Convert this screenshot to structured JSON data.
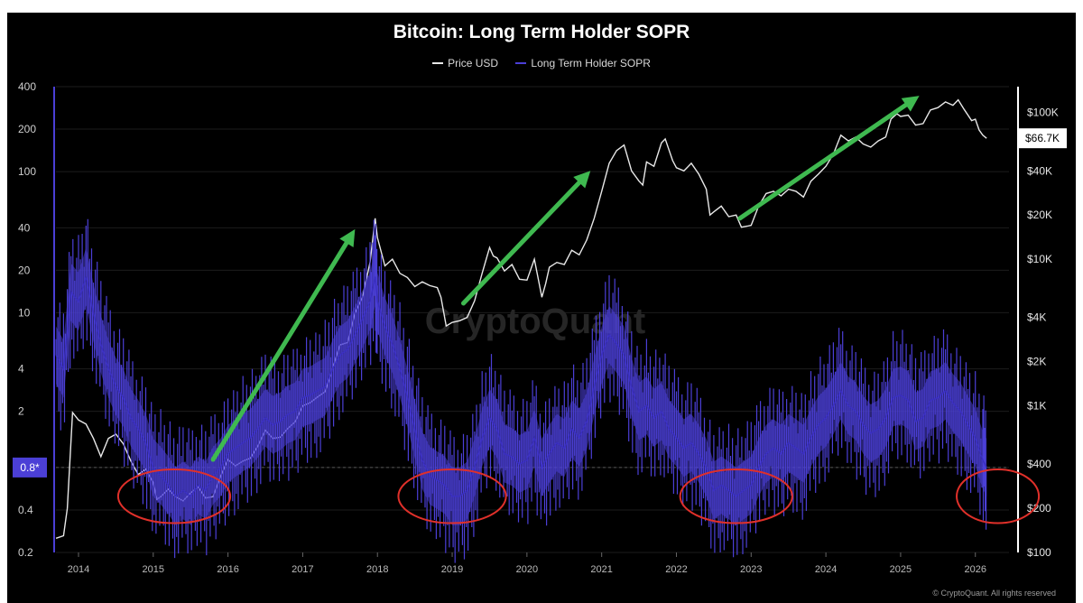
{
  "chart_data": {
    "type": "line",
    "title": "Bitcoin: Long Term Holder SOPR",
    "y_scale": "log",
    "left_axis_ticks": [
      "400",
      "200",
      "100",
      "40",
      "20",
      "10",
      "4",
      "2",
      "0.8*",
      "0.4",
      "0.2"
    ],
    "right_axis_ticks": [
      "$100K",
      "$40K",
      "$20K",
      "$10K",
      "$4K",
      "$2K",
      "$1K",
      "$400",
      "$200",
      "$100"
    ],
    "x_ticks": [
      "2014",
      "2015",
      "2016",
      "2017",
      "2018",
      "2019",
      "2020",
      "2021",
      "2022",
      "2023",
      "2024",
      "2025",
      "2026"
    ],
    "left_range": [
      0.2,
      400
    ],
    "right_range": [
      100,
      150000
    ],
    "current_price_label": "$66.7K",
    "current_sopr_label": "0.8*",
    "watermark": "CryptoQuant",
    "copyright": "© CryptoQuant. All rights reserved",
    "series": [
      {
        "name": "Price USD",
        "color": "#e8e8e8",
        "axis": "right",
        "points": [
          [
            2013.7,
            125
          ],
          [
            2013.8,
            130
          ],
          [
            2013.85,
            200
          ],
          [
            2013.92,
            900
          ],
          [
            213.96,
            1000
          ],
          [
            2014.0,
            800
          ],
          [
            2014.1,
            750
          ],
          [
            2014.2,
            600
          ],
          [
            2014.3,
            450
          ],
          [
            2014.4,
            600
          ],
          [
            2014.5,
            640
          ],
          [
            2014.6,
            550
          ],
          [
            2014.7,
            420
          ],
          [
            2014.8,
            340
          ],
          [
            2014.9,
            370
          ],
          [
            2015.0,
            300
          ],
          [
            2015.05,
            230
          ],
          [
            2015.1,
            240
          ],
          [
            2015.2,
            270
          ],
          [
            2015.3,
            240
          ],
          [
            2015.4,
            225
          ],
          [
            2015.5,
            255
          ],
          [
            2015.6,
            280
          ],
          [
            2015.7,
            235
          ],
          [
            2015.8,
            240
          ],
          [
            2015.9,
            330
          ],
          [
            2016.0,
            430
          ],
          [
            2016.1,
            390
          ],
          [
            2016.2,
            420
          ],
          [
            2016.3,
            440
          ],
          [
            2016.4,
            530
          ],
          [
            2016.5,
            680
          ],
          [
            2016.6,
            600
          ],
          [
            2016.7,
            610
          ],
          [
            2016.8,
            700
          ],
          [
            2016.9,
            780
          ],
          [
            2017.0,
            1000
          ],
          [
            2017.1,
            1050
          ],
          [
            2017.2,
            1150
          ],
          [
            2017.3,
            1250
          ],
          [
            2017.4,
            1800
          ],
          [
            2017.5,
            2600
          ],
          [
            2017.6,
            2700
          ],
          [
            2017.7,
            4300
          ],
          [
            2017.8,
            5500
          ],
          [
            2017.9,
            9500
          ],
          [
            2017.97,
            19000
          ],
          [
            2018.0,
            14000
          ],
          [
            2018.1,
            9000
          ],
          [
            2018.2,
            10000
          ],
          [
            2018.3,
            8000
          ],
          [
            2018.4,
            7500
          ],
          [
            2018.5,
            6500
          ],
          [
            2018.6,
            7000
          ],
          [
            2018.7,
            6600
          ],
          [
            2018.8,
            6400
          ],
          [
            2018.85,
            5500
          ],
          [
            2018.92,
            3500
          ],
          [
            2019.0,
            3700
          ],
          [
            2019.1,
            3800
          ],
          [
            2019.2,
            4000
          ],
          [
            2019.3,
            5200
          ],
          [
            2019.4,
            8000
          ],
          [
            2019.5,
            12000
          ],
          [
            2019.55,
            10500
          ],
          [
            2019.6,
            10200
          ],
          [
            2019.7,
            8300
          ],
          [
            2019.8,
            9200
          ],
          [
            2019.9,
            7300
          ],
          [
            2020.0,
            7200
          ],
          [
            2020.1,
            10000
          ],
          [
            2020.2,
            5500
          ],
          [
            2020.25,
            6800
          ],
          [
            2020.3,
            8800
          ],
          [
            2020.4,
            9500
          ],
          [
            2020.5,
            9200
          ],
          [
            2020.6,
            11500
          ],
          [
            2020.7,
            10700
          ],
          [
            2020.8,
            13500
          ],
          [
            2020.9,
            19000
          ],
          [
            2021.0,
            29000
          ],
          [
            2021.1,
            45000
          ],
          [
            2021.2,
            55000
          ],
          [
            2021.3,
            60000
          ],
          [
            2021.4,
            40000
          ],
          [
            2021.5,
            34000
          ],
          [
            2021.55,
            32000
          ],
          [
            2021.6,
            46000
          ],
          [
            2021.7,
            43000
          ],
          [
            2021.8,
            62000
          ],
          [
            2021.85,
            66000
          ],
          [
            2021.95,
            47000
          ],
          [
            2022.0,
            42000
          ],
          [
            2022.1,
            40000
          ],
          [
            2022.2,
            45000
          ],
          [
            2022.3,
            38000
          ],
          [
            2022.4,
            30000
          ],
          [
            2022.45,
            20000
          ],
          [
            2022.5,
            21000
          ],
          [
            2022.6,
            23000
          ],
          [
            2022.7,
            19500
          ],
          [
            2022.8,
            20000
          ],
          [
            2022.87,
            16500
          ],
          [
            2022.95,
            16800
          ],
          [
            2023.0,
            17000
          ],
          [
            2023.1,
            23000
          ],
          [
            2023.2,
            28000
          ],
          [
            2023.3,
            29000
          ],
          [
            2023.4,
            27000
          ],
          [
            2023.5,
            30000
          ],
          [
            2023.6,
            29000
          ],
          [
            2023.7,
            26500
          ],
          [
            2023.8,
            34000
          ],
          [
            2023.9,
            38000
          ],
          [
            2024.0,
            43000
          ],
          [
            2024.1,
            52000
          ],
          [
            2024.2,
            70000
          ],
          [
            2024.3,
            64000
          ],
          [
            2024.4,
            68000
          ],
          [
            2024.5,
            61000
          ],
          [
            2024.6,
            58000
          ],
          [
            2024.7,
            64000
          ],
          [
            2024.8,
            68000
          ],
          [
            2024.87,
            90000
          ],
          [
            2024.95,
            98000
          ],
          [
            2025.0,
            94000
          ],
          [
            2025.1,
            96000
          ],
          [
            2025.2,
            82000
          ],
          [
            2025.3,
            84000
          ],
          [
            2025.4,
            104000
          ],
          [
            2025.5,
            108000
          ],
          [
            2025.6,
            118000
          ],
          [
            2025.7,
            112000
          ],
          [
            2025.77,
            122000
          ],
          [
            2025.85,
            105000
          ],
          [
            2025.95,
            88000
          ],
          [
            2026.0,
            90000
          ],
          [
            2026.05,
            76000
          ],
          [
            2026.1,
            70000
          ],
          [
            2026.15,
            66700
          ]
        ]
      },
      {
        "name": "Long Term Holder SOPR",
        "color": "#4b3fd6",
        "axis": "left",
        "points": [
          [
            2013.7,
            5
          ],
          [
            2013.8,
            4
          ],
          [
            2013.9,
            14
          ],
          [
            2014.0,
            12
          ],
          [
            2014.1,
            18
          ],
          [
            2014.2,
            10
          ],
          [
            2014.3,
            6
          ],
          [
            2014.4,
            4
          ],
          [
            2014.5,
            3
          ],
          [
            2014.6,
            2.5
          ],
          [
            2014.7,
            1.8
          ],
          [
            2014.8,
            1.5
          ],
          [
            2014.9,
            1.2
          ],
          [
            2015.0,
            0.8
          ],
          [
            2015.1,
            0.7
          ],
          [
            2015.2,
            0.6
          ],
          [
            2015.3,
            0.5
          ],
          [
            2015.4,
            0.55
          ],
          [
            2015.5,
            0.5
          ],
          [
            2015.6,
            0.6
          ],
          [
            2015.7,
            0.55
          ],
          [
            2015.8,
            0.7
          ],
          [
            2015.9,
            0.8
          ],
          [
            2016.0,
            1.0
          ],
          [
            2016.1,
            1.1
          ],
          [
            2016.2,
            1.2
          ],
          [
            2016.3,
            1.3
          ],
          [
            2016.4,
            1.5
          ],
          [
            2016.5,
            1.8
          ],
          [
            2016.6,
            1.6
          ],
          [
            2016.7,
            1.7
          ],
          [
            2016.8,
            1.9
          ],
          [
            2016.9,
            2.0
          ],
          [
            2017.0,
            2.5
          ],
          [
            2017.1,
            2.6
          ],
          [
            2017.2,
            2.8
          ],
          [
            2017.3,
            3.0
          ],
          [
            2017.4,
            4
          ],
          [
            2017.5,
            5
          ],
          [
            2017.6,
            5.5
          ],
          [
            2017.7,
            7
          ],
          [
            2017.8,
            9
          ],
          [
            2017.9,
            12
          ],
          [
            2017.97,
            18
          ],
          [
            2018.0,
            12
          ],
          [
            2018.1,
            8
          ],
          [
            2018.2,
            6
          ],
          [
            2018.3,
            4
          ],
          [
            2018.4,
            2.5
          ],
          [
            2018.5,
            1.5
          ],
          [
            2018.6,
            0.9
          ],
          [
            2018.7,
            0.7
          ],
          [
            2018.8,
            0.65
          ],
          [
            2018.9,
            0.6
          ],
          [
            2019.0,
            0.5
          ],
          [
            2019.1,
            0.5
          ],
          [
            2019.2,
            0.55
          ],
          [
            2019.3,
            0.8
          ],
          [
            2019.4,
            1.3
          ],
          [
            2019.5,
            1.8
          ],
          [
            2019.6,
            1.5
          ],
          [
            2019.7,
            1.0
          ],
          [
            2019.8,
            0.95
          ],
          [
            2019.9,
            0.85
          ],
          [
            2020.0,
            0.9
          ],
          [
            2020.1,
            1.3
          ],
          [
            2020.2,
            0.8
          ],
          [
            2020.3,
            1.0
          ],
          [
            2020.4,
            1.2
          ],
          [
            2020.5,
            1.1
          ],
          [
            2020.6,
            1.5
          ],
          [
            2020.7,
            1.3
          ],
          [
            2020.8,
            1.7
          ],
          [
            2020.9,
            3
          ],
          [
            2021.0,
            5
          ],
          [
            2021.1,
            7
          ],
          [
            2021.2,
            6
          ],
          [
            2021.3,
            5
          ],
          [
            2021.4,
            3
          ],
          [
            2021.5,
            2
          ],
          [
            2021.6,
            2.2
          ],
          [
            2021.7,
            1.8
          ],
          [
            2021.8,
            2.0
          ],
          [
            2021.9,
            1.5
          ],
          [
            2022.0,
            1.3
          ],
          [
            2022.1,
            1.1
          ],
          [
            2022.2,
            1.2
          ],
          [
            2022.3,
            1.0
          ],
          [
            2022.4,
            0.8
          ],
          [
            2022.5,
            0.55
          ],
          [
            2022.6,
            0.6
          ],
          [
            2022.7,
            0.55
          ],
          [
            2022.8,
            0.5
          ],
          [
            2022.9,
            0.55
          ],
          [
            2023.0,
            0.6
          ],
          [
            2023.1,
            0.8
          ],
          [
            2023.2,
            1.0
          ],
          [
            2023.3,
            1.1
          ],
          [
            2023.4,
            1.0
          ],
          [
            2023.5,
            1.2
          ],
          [
            2023.6,
            1.1
          ],
          [
            2023.7,
            1.0
          ],
          [
            2023.8,
            1.3
          ],
          [
            2023.9,
            1.6
          ],
          [
            2024.0,
            1.8
          ],
          [
            2024.1,
            2.2
          ],
          [
            2024.2,
            2.8
          ],
          [
            2024.3,
            2.2
          ],
          [
            2024.4,
            2.0
          ],
          [
            2024.5,
            1.6
          ],
          [
            2024.6,
            1.4
          ],
          [
            2024.7,
            1.5
          ],
          [
            2024.8,
            1.8
          ],
          [
            2024.9,
            2.5
          ],
          [
            2025.0,
            2.6
          ],
          [
            2025.1,
            2.4
          ],
          [
            2025.2,
            1.7
          ],
          [
            2025.3,
            1.8
          ],
          [
            2025.4,
            2.4
          ],
          [
            2025.5,
            2.5
          ],
          [
            2025.6,
            2.8
          ],
          [
            2025.7,
            2.3
          ],
          [
            2025.8,
            2.0
          ],
          [
            2025.9,
            1.6
          ],
          [
            2026.0,
            1.3
          ],
          [
            2026.1,
            0.9
          ],
          [
            2026.15,
            0.8
          ]
        ]
      }
    ],
    "annotations": [
      {
        "type": "arrow",
        "color": "#3fb950",
        "from": [
          2015.8,
          430
        ],
        "to": [
          2017.7,
          16000
        ]
      },
      {
        "type": "arrow",
        "color": "#3fb950",
        "from": [
          2019.15,
          5000
        ],
        "to": [
          2020.85,
          40000
        ]
      },
      {
        "type": "arrow",
        "color": "#3fb950",
        "from": [
          2022.85,
          19000
        ],
        "to": [
          2025.25,
          130000
        ]
      },
      {
        "type": "ellipse",
        "color": "#e0302a",
        "center": [
          2015.28,
          0.5
        ],
        "rx_years": 0.75,
        "ry_factor": 1.55
      },
      {
        "type": "ellipse",
        "color": "#e0302a",
        "center": [
          2019.0,
          0.5
        ],
        "rx_years": 0.72,
        "ry_factor": 1.55
      },
      {
        "type": "ellipse",
        "color": "#e0302a",
        "center": [
          2022.8,
          0.5
        ],
        "rx_years": 0.75,
        "ry_factor": 1.55
      },
      {
        "type": "ellipse",
        "color": "#e0302a",
        "center": [
          2026.3,
          0.5
        ],
        "rx_years": 0.55,
        "ry_factor": 1.55
      }
    ]
  }
}
